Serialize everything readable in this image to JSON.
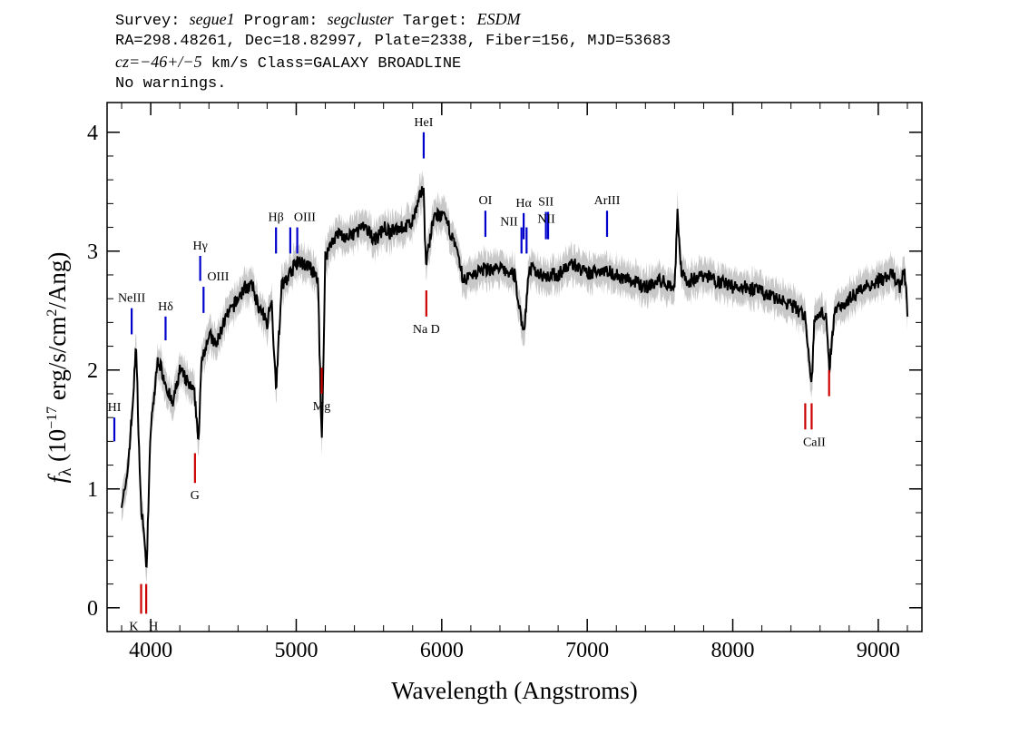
{
  "header": {
    "line1": {
      "survey_label": "Survey: ",
      "survey": "segue1",
      "program_label": " Program: ",
      "program": "segcluster",
      "target_label": " Target: ",
      "target": "ESDM"
    },
    "line2": "RA=298.48261, Dec=18.82997, Plate=2338, Fiber=156, MJD=53683",
    "line3": {
      "cz_label": "cz=",
      "cz_value": "−46+/−5",
      "cz_rest": " km/s Class=GALAXY BROADLINE"
    },
    "line4": "No warnings."
  },
  "chart_data": {
    "type": "line",
    "xlabel": "Wavelength (Angstroms)",
    "ylabel": "f_λ (10^-17 erg/s/cm^2/Ang)",
    "xlim": [
      3700,
      9300
    ],
    "ylim": [
      -0.2,
      4.25
    ],
    "x_ticks": [
      4000,
      5000,
      6000,
      7000,
      8000,
      9000
    ],
    "y_ticks": [
      0,
      1,
      2,
      3,
      4
    ],
    "grid": false,
    "legend": "none",
    "colors": {
      "spectrum": "#000000",
      "error": "#c8c8c8",
      "emission": "#0000cc",
      "absorption": "#cc0000"
    },
    "spectrum": {
      "x": [
        3800,
        3830,
        3870,
        3900,
        3930,
        3950,
        3970,
        4000,
        4050,
        4100,
        4150,
        4200,
        4250,
        4300,
        4330,
        4350,
        4400,
        4450,
        4500,
        4550,
        4600,
        4650,
        4700,
        4750,
        4800,
        4830,
        4861,
        4900,
        4950,
        5000,
        5050,
        5100,
        5150,
        5175,
        5200,
        5250,
        5300,
        5350,
        5400,
        5450,
        5500,
        5550,
        5600,
        5650,
        5700,
        5750,
        5800,
        5850,
        5875,
        5890,
        5950,
        6000,
        6050,
        6100,
        6150,
        6200,
        6300,
        6400,
        6500,
        6563,
        6600,
        6700,
        6800,
        6900,
        7000,
        7100,
        7200,
        7300,
        7400,
        7500,
        7600,
        7620,
        7650,
        7700,
        7800,
        7900,
        8000,
        8100,
        8200,
        8300,
        8400,
        8450,
        8500,
        8542,
        8560,
        8600,
        8640,
        8662,
        8700,
        8800,
        8900,
        9000,
        9100,
        9150,
        9180,
        9200
      ],
      "y": [
        0.9,
        1.0,
        1.6,
        2.2,
        0.9,
        0.7,
        0.3,
        1.5,
        2.1,
        1.9,
        1.7,
        2.0,
        1.9,
        1.8,
        1.4,
        2.1,
        2.3,
        2.2,
        2.4,
        2.5,
        2.6,
        2.7,
        2.7,
        2.5,
        2.4,
        2.6,
        1.85,
        2.7,
        2.8,
        2.9,
        2.9,
        2.85,
        2.75,
        1.35,
        2.95,
        3.1,
        3.15,
        3.1,
        3.15,
        3.2,
        3.15,
        3.1,
        3.2,
        3.15,
        3.2,
        3.2,
        3.25,
        3.45,
        3.55,
        2.9,
        3.3,
        3.3,
        3.2,
        3.0,
        2.75,
        2.8,
        2.85,
        2.85,
        2.8,
        2.3,
        2.85,
        2.8,
        2.8,
        2.9,
        2.8,
        2.85,
        2.8,
        2.75,
        2.7,
        2.75,
        2.7,
        3.3,
        2.8,
        2.75,
        2.8,
        2.75,
        2.7,
        2.7,
        2.65,
        2.6,
        2.55,
        2.5,
        2.45,
        1.85,
        2.4,
        2.5,
        2.45,
        2.0,
        2.5,
        2.6,
        2.7,
        2.75,
        2.8,
        2.7,
        2.85,
        2.5
      ],
      "error": 0.1
    },
    "lines": [
      {
        "label": "HI",
        "x": 3750,
        "y0": 1.4,
        "y1": 1.6,
        "type": "emission",
        "label_pos": "above"
      },
      {
        "label": "NeIII",
        "x": 3869,
        "y0": 2.3,
        "y1": 2.52,
        "type": "emission",
        "label_pos": "above"
      },
      {
        "label": "Hδ",
        "x": 4102,
        "y0": 2.25,
        "y1": 2.45,
        "type": "emission",
        "label_pos": "above"
      },
      {
        "label": "Hγ",
        "x": 4340,
        "y0": 2.75,
        "y1": 2.96,
        "type": "emission",
        "label_pos": "above"
      },
      {
        "label": "OIII",
        "x": 4363,
        "y0": 2.48,
        "y1": 2.7,
        "type": "emission",
        "label_pos": "above-right"
      },
      {
        "label": "Hβ",
        "x": 4861,
        "y0": 2.98,
        "y1": 3.2,
        "type": "emission",
        "label_pos": "above"
      },
      {
        "label": "OIII",
        "x": 4959,
        "y0": 2.98,
        "y1": 3.2,
        "type": "emission",
        "label_pos": "above-right"
      },
      {
        "label": "",
        "x": 5007,
        "y0": 2.98,
        "y1": 3.2,
        "type": "emission",
        "label_pos": "none"
      },
      {
        "label": "HeI",
        "x": 5876,
        "y0": 3.78,
        "y1": 4.0,
        "type": "emission",
        "label_pos": "above"
      },
      {
        "label": "OI",
        "x": 6300,
        "y0": 3.12,
        "y1": 3.34,
        "type": "emission",
        "label_pos": "above"
      },
      {
        "label": "NII",
        "x": 6548,
        "y0": 2.98,
        "y1": 3.2,
        "type": "emission",
        "label_pos": "above-left"
      },
      {
        "label": "Hα",
        "x": 6563,
        "y0": 3.1,
        "y1": 3.32,
        "type": "emission",
        "label_pos": "above"
      },
      {
        "label": "NII",
        "x": 6583,
        "y0": 2.98,
        "y1": 3.2,
        "type": "emission",
        "label_pos": "none"
      },
      {
        "label": "SII",
        "x": 6716,
        "y0": 3.1,
        "y1": 3.33,
        "type": "emission",
        "label_pos": "above"
      },
      {
        "label": "NII",
        "x": 6731,
        "y0": 3.1,
        "y1": 3.33,
        "type": "emission",
        "label_pos": "above-mid"
      },
      {
        "label": "ArIII",
        "x": 7136,
        "y0": 3.12,
        "y1": 3.34,
        "type": "emission",
        "label_pos": "above"
      },
      {
        "label": "K",
        "x": 3934,
        "y0": -0.05,
        "y1": 0.2,
        "type": "absorption",
        "label_pos": "below"
      },
      {
        "label": "H",
        "x": 3969,
        "y0": -0.05,
        "y1": 0.2,
        "type": "absorption",
        "label_pos": "below"
      },
      {
        "label": "G",
        "x": 4304,
        "y0": 1.05,
        "y1": 1.3,
        "type": "absorption",
        "label_pos": "below"
      },
      {
        "label": "Mg",
        "x": 5175,
        "y0": 1.8,
        "y1": 2.02,
        "type": "absorption",
        "label_pos": "below"
      },
      {
        "label": "Na D",
        "x": 5894,
        "y0": 2.45,
        "y1": 2.67,
        "type": "absorption",
        "label_pos": "below"
      },
      {
        "label": "CaII",
        "x": 8498,
        "y0": 1.5,
        "y1": 1.72,
        "type": "absorption",
        "label_pos": "below"
      },
      {
        "label": "",
        "x": 8542,
        "y0": 1.5,
        "y1": 1.72,
        "type": "absorption",
        "label_pos": "none"
      },
      {
        "label": "",
        "x": 8662,
        "y0": 1.78,
        "y1": 2.0,
        "type": "absorption",
        "label_pos": "none"
      }
    ]
  }
}
